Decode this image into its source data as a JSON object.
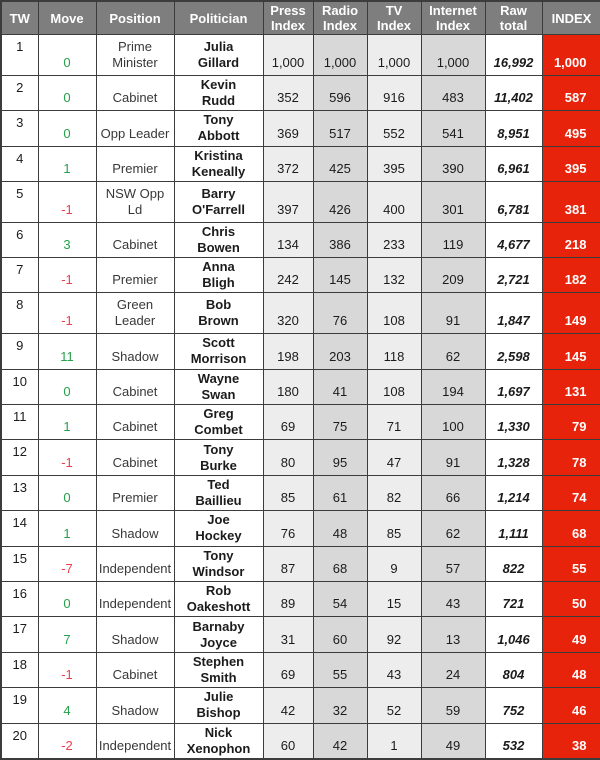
{
  "colors": {
    "header_bg": "#7e7e7e",
    "grid": "#3c3c3c",
    "index_bg": "#e8230b",
    "move_up": "#26a04a",
    "move_down": "#ee3c4e",
    "col_light": "#ededed",
    "col_dark": "#d8d8d8"
  },
  "chart_data": {
    "type": "table",
    "columns": [
      {
        "key": "tw",
        "label": "TW"
      },
      {
        "key": "move",
        "label": "Move"
      },
      {
        "key": "position",
        "label": "Position"
      },
      {
        "key": "politician",
        "label": "Politician"
      },
      {
        "key": "press",
        "label": "Press Index"
      },
      {
        "key": "radio",
        "label": "Radio Index"
      },
      {
        "key": "tv",
        "label": "TV Index"
      },
      {
        "key": "internet",
        "label": "Internet Index"
      },
      {
        "key": "raw",
        "label": "Raw total"
      },
      {
        "key": "index",
        "label": "INDEX"
      }
    ],
    "rows": [
      {
        "tw": "1",
        "move": "0",
        "position": "Prime Minister",
        "name": [
          "Julia",
          "Gillard"
        ],
        "press": "1,000",
        "radio": "1,000",
        "tv": "1,000",
        "internet": "1,000",
        "raw": "16,992",
        "index": "1,000"
      },
      {
        "tw": "2",
        "move": "0",
        "position": "Cabinet",
        "name": [
          "Kevin",
          "Rudd"
        ],
        "press": "352",
        "radio": "596",
        "tv": "916",
        "internet": "483",
        "raw": "11,402",
        "index": "587"
      },
      {
        "tw": "3",
        "move": "0",
        "position": "Opp Leader",
        "name": [
          "Tony",
          "Abbott"
        ],
        "press": "369",
        "radio": "517",
        "tv": "552",
        "internet": "541",
        "raw": "8,951",
        "index": "495"
      },
      {
        "tw": "4",
        "move": "1",
        "position": "Premier",
        "name": [
          "Kristina",
          "Keneally"
        ],
        "press": "372",
        "radio": "425",
        "tv": "395",
        "internet": "390",
        "raw": "6,961",
        "index": "395"
      },
      {
        "tw": "5",
        "move": "-1",
        "position": "NSW Opp Ld",
        "name": [
          "Barry",
          "O'Farrell"
        ],
        "press": "397",
        "radio": "426",
        "tv": "400",
        "internet": "301",
        "raw": "6,781",
        "index": "381"
      },
      {
        "tw": "6",
        "move": "3",
        "position": "Cabinet",
        "name": [
          "Chris",
          "Bowen"
        ],
        "press": "134",
        "radio": "386",
        "tv": "233",
        "internet": "119",
        "raw": "4,677",
        "index": "218"
      },
      {
        "tw": "7",
        "move": "-1",
        "position": "Premier",
        "name": [
          "Anna",
          "Bligh"
        ],
        "press": "242",
        "radio": "145",
        "tv": "132",
        "internet": "209",
        "raw": "2,721",
        "index": "182"
      },
      {
        "tw": "8",
        "move": "-1",
        "position": "Green Leader",
        "name": [
          "Bob",
          "Brown"
        ],
        "press": "320",
        "radio": "76",
        "tv": "108",
        "internet": "91",
        "raw": "1,847",
        "index": "149"
      },
      {
        "tw": "9",
        "move": "11",
        "position": "Shadow",
        "name": [
          "Scott",
          "Morrison"
        ],
        "press": "198",
        "radio": "203",
        "tv": "118",
        "internet": "62",
        "raw": "2,598",
        "index": "145"
      },
      {
        "tw": "10",
        "move": "0",
        "position": "Cabinet",
        "name": [
          "Wayne",
          "Swan"
        ],
        "press": "180",
        "radio": "41",
        "tv": "108",
        "internet": "194",
        "raw": "1,697",
        "index": "131"
      },
      {
        "tw": "11",
        "move": "1",
        "position": "Cabinet",
        "name": [
          "Greg",
          "Combet"
        ],
        "press": "69",
        "radio": "75",
        "tv": "71",
        "internet": "100",
        "raw": "1,330",
        "index": "79"
      },
      {
        "tw": "12",
        "move": "-1",
        "position": "Cabinet",
        "name": [
          "Tony",
          "Burke"
        ],
        "press": "80",
        "radio": "95",
        "tv": "47",
        "internet": "91",
        "raw": "1,328",
        "index": "78"
      },
      {
        "tw": "13",
        "move": "0",
        "position": "Premier",
        "name": [
          "Ted",
          "Baillieu"
        ],
        "press": "85",
        "radio": "61",
        "tv": "82",
        "internet": "66",
        "raw": "1,214",
        "index": "74"
      },
      {
        "tw": "14",
        "move": "1",
        "position": "Shadow",
        "name": [
          "Joe",
          "Hockey"
        ],
        "press": "76",
        "radio": "48",
        "tv": "85",
        "internet": "62",
        "raw": "1,111",
        "index": "68"
      },
      {
        "tw": "15",
        "move": "-7",
        "position": "Independent",
        "name": [
          "Tony",
          "Windsor"
        ],
        "press": "87",
        "radio": "68",
        "tv": "9",
        "internet": "57",
        "raw": "822",
        "index": "55"
      },
      {
        "tw": "16",
        "move": "0",
        "position": "Independent",
        "name": [
          "Rob",
          "Oakeshott"
        ],
        "press": "89",
        "radio": "54",
        "tv": "15",
        "internet": "43",
        "raw": "721",
        "index": "50"
      },
      {
        "tw": "17",
        "move": "7",
        "position": "Shadow",
        "name": [
          "Barnaby",
          "Joyce"
        ],
        "press": "31",
        "radio": "60",
        "tv": "92",
        "internet": "13",
        "raw": "1,046",
        "index": "49"
      },
      {
        "tw": "18",
        "move": "-1",
        "position": "Cabinet",
        "name": [
          "Stephen",
          "Smith"
        ],
        "press": "69",
        "radio": "55",
        "tv": "43",
        "internet": "24",
        "raw": "804",
        "index": "48"
      },
      {
        "tw": "19",
        "move": "4",
        "position": "Shadow",
        "name": [
          "Julie",
          "Bishop"
        ],
        "press": "42",
        "radio": "32",
        "tv": "52",
        "internet": "59",
        "raw": "752",
        "index": "46"
      },
      {
        "tw": "20",
        "move": "-2",
        "position": "Independent",
        "name": [
          "Nick",
          "Xenophon"
        ],
        "press": "60",
        "radio": "42",
        "tv": "1",
        "internet": "49",
        "raw": "532",
        "index": "38"
      }
    ]
  }
}
